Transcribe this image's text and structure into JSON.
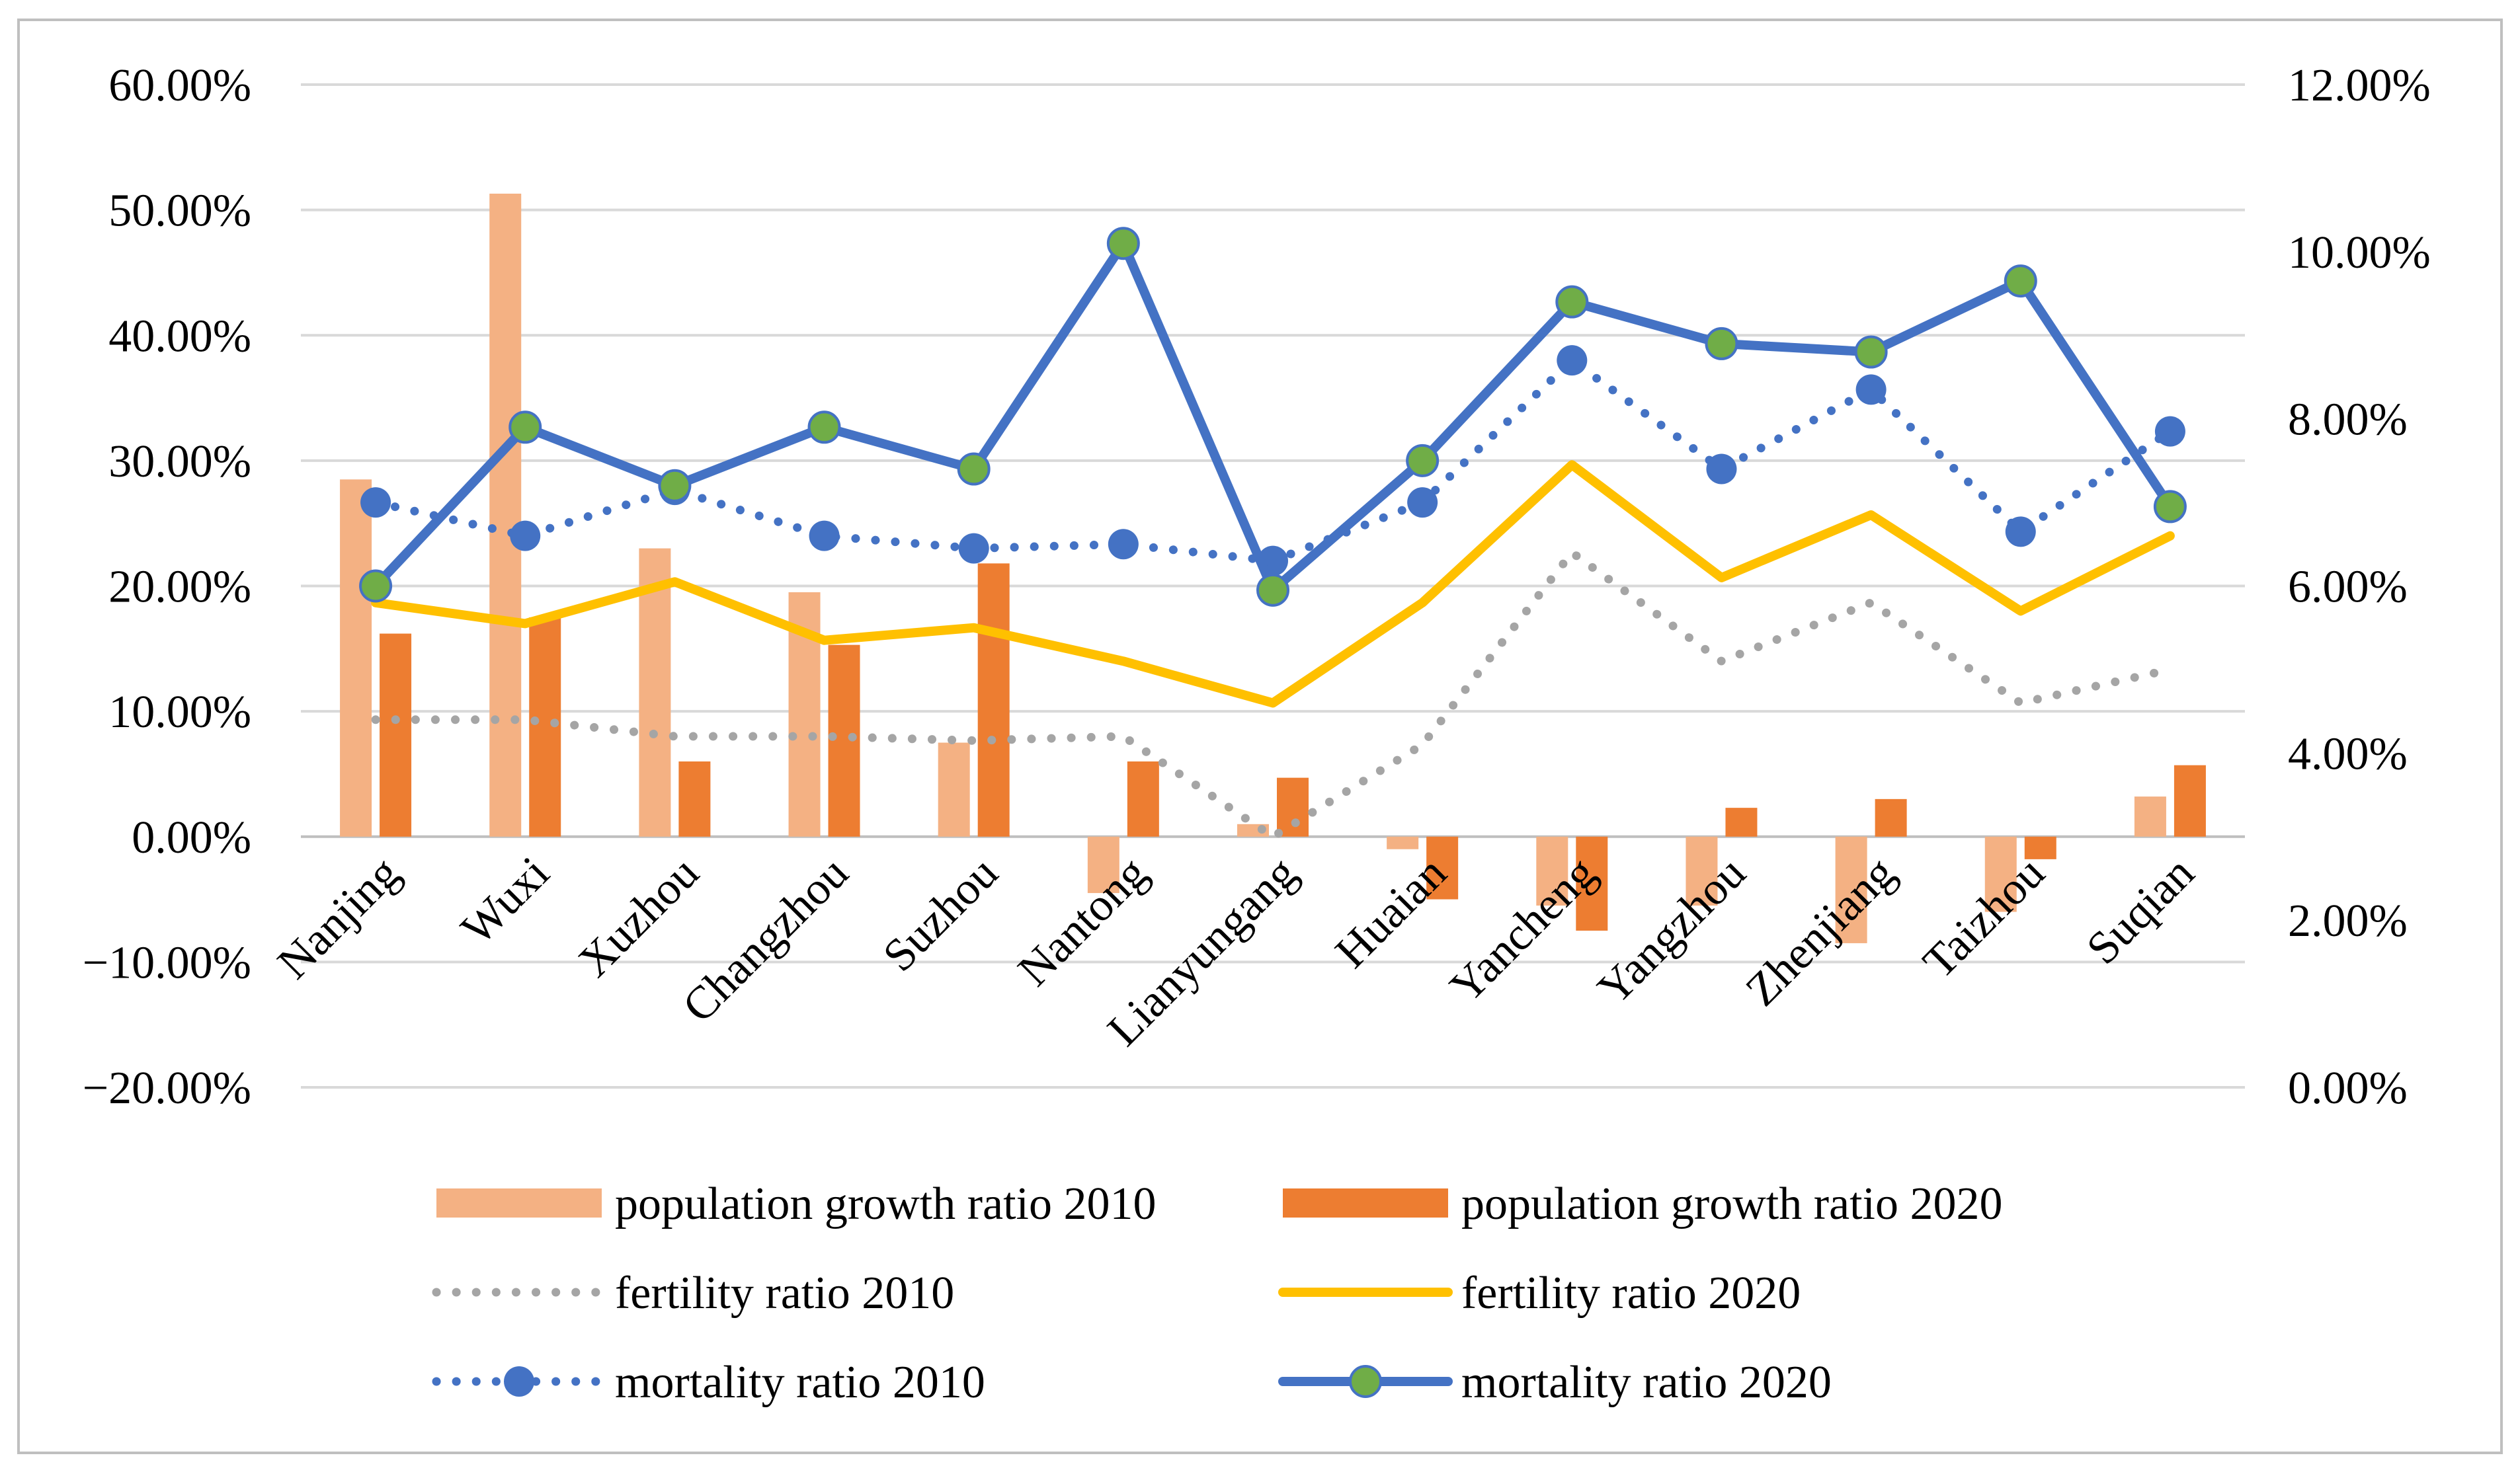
{
  "chart_data": {
    "type": "bar+line",
    "title": "",
    "categories": [
      "Nanjing",
      "Wuxi",
      "Xuzhou",
      "Changzhou",
      "Suzhou",
      "Nantong",
      "Lianyungang",
      "Huaian",
      "Yancheng",
      "Yangzhou",
      "Zhenjiang",
      "Taizhou",
      "Suqian"
    ],
    "left_axis": {
      "ylim": [
        -20,
        60
      ],
      "ticks": [
        60,
        50,
        40,
        30,
        20,
        10,
        0,
        -10,
        -20
      ],
      "tick_labels": [
        "60.00%",
        "50.00%",
        "40.00%",
        "30.00%",
        "20.00%",
        "10.00%",
        "0.00%",
        "−10.00%",
        "−20.00%"
      ]
    },
    "right_axis": {
      "ylim": [
        0,
        12
      ],
      "ticks": [
        12,
        10,
        8,
        6,
        4,
        2,
        0
      ],
      "tick_labels": [
        "12.00%",
        "10.00%",
        "8.00%",
        "6.00%",
        "4.00%",
        "2.00%",
        "0.00%"
      ]
    },
    "grid": true,
    "legend_position": "bottom",
    "series": [
      {
        "name": "population growth ratio 2010",
        "type": "bar",
        "axis": "left",
        "color": "#f4b183",
        "values": [
          28.5,
          51.3,
          23.0,
          19.5,
          7.5,
          -4.5,
          1.0,
          -1.0,
          -5.5,
          -5.5,
          -8.5,
          -6.0,
          3.2
        ]
      },
      {
        "name": "population growth ratio 2020",
        "type": "bar",
        "axis": "left",
        "color": "#ed7d31",
        "values": [
          16.2,
          17.5,
          6.0,
          15.3,
          21.8,
          6.0,
          4.7,
          -5.0,
          -7.5,
          2.3,
          3.0,
          -1.8,
          5.7
        ]
      },
      {
        "name": "fertility ratio 2010",
        "type": "line",
        "style": "dotted",
        "axis": "right",
        "color": "#a5a5a5",
        "values": [
          4.4,
          4.4,
          4.2,
          4.2,
          4.15,
          4.2,
          3.0,
          4.1,
          6.4,
          5.1,
          5.8,
          4.6,
          5.0
        ]
      },
      {
        "name": "fertility ratio 2020",
        "type": "line",
        "style": "solid",
        "axis": "right",
        "color": "#ffc000",
        "values": [
          5.8,
          5.55,
          6.05,
          5.35,
          5.5,
          5.1,
          4.6,
          5.8,
          7.45,
          6.1,
          6.85,
          5.7,
          6.6
        ]
      },
      {
        "name": "mortality ratio 2010",
        "type": "line",
        "style": "dotted",
        "marker": true,
        "axis": "right",
        "color": "#4472c4",
        "values": [
          7.0,
          6.6,
          7.15,
          6.6,
          6.45,
          6.5,
          6.3,
          7.0,
          8.7,
          7.4,
          8.35,
          6.65,
          7.85
        ]
      },
      {
        "name": "mortality ratio 2020",
        "type": "line",
        "style": "solid",
        "marker": true,
        "marker_color": "#70ad47",
        "axis": "right",
        "color": "#4472c4",
        "values": [
          6.0,
          7.9,
          7.2,
          7.9,
          7.4,
          10.1,
          5.95,
          7.5,
          9.4,
          8.9,
          8.8,
          9.65,
          6.95
        ]
      }
    ]
  }
}
